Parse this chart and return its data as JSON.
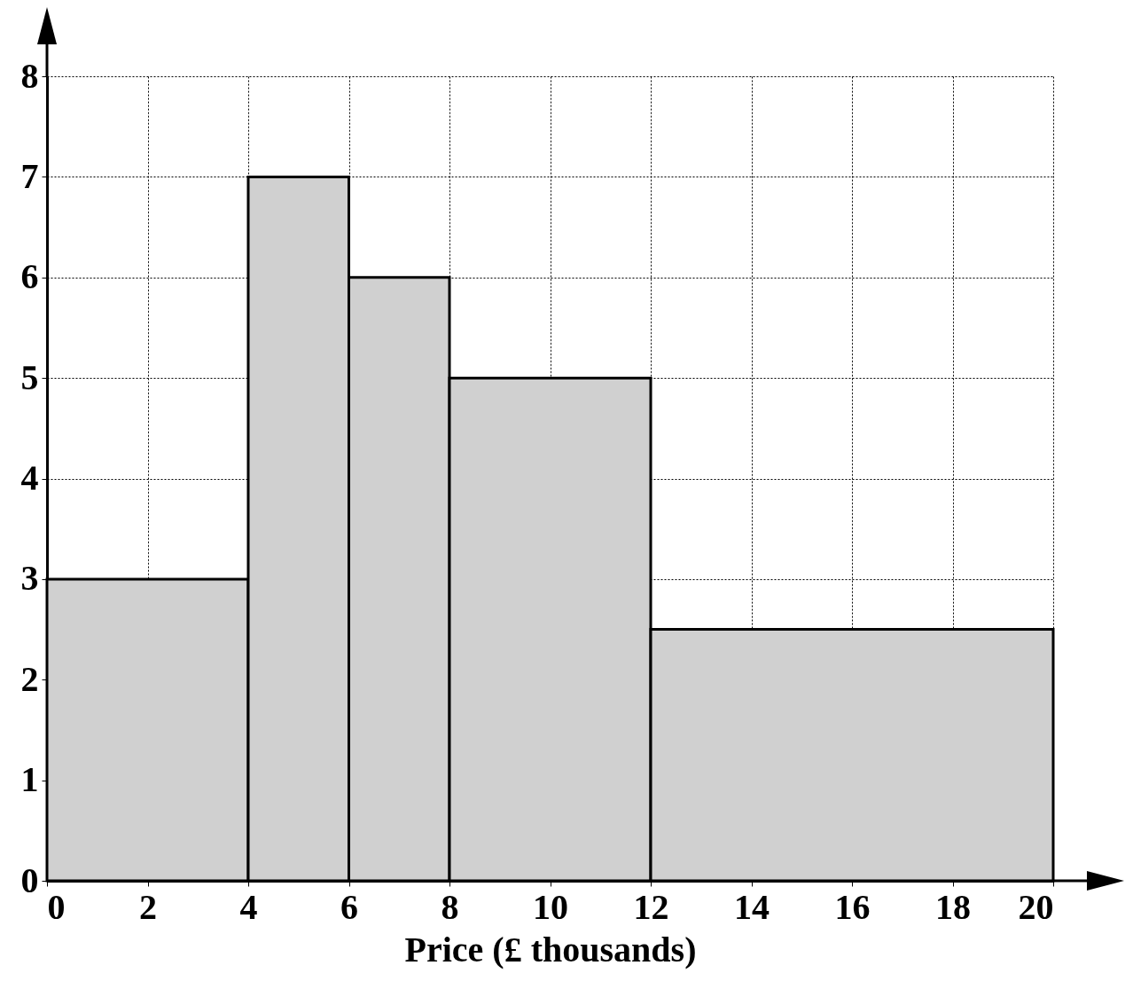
{
  "chart_data": {
    "type": "histogram",
    "xlabel": "Price (£ thousands)",
    "bins": [
      0,
      4,
      6,
      8,
      12,
      20
    ],
    "values": [
      3,
      7,
      6,
      5,
      2.5
    ],
    "color": "#d0d0d0",
    "xlim": [
      0,
      20
    ],
    "xticks": [
      0,
      2,
      4,
      6,
      8,
      10,
      12,
      14,
      16,
      18,
      20
    ],
    "ylim": [
      0,
      8
    ],
    "yticks": [
      0,
      1,
      2,
      3,
      4,
      5,
      6,
      7,
      8
    ],
    "grid": true
  }
}
